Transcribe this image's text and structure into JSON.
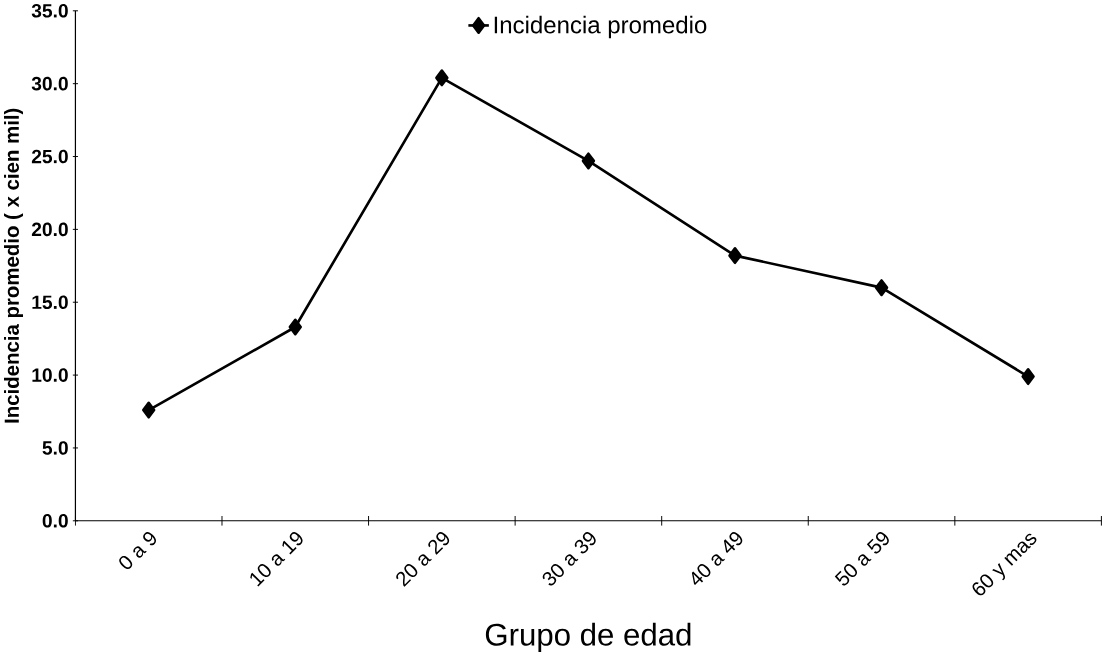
{
  "chart_data": {
    "type": "line",
    "xlabel": "Grupo de edad",
    "ylabel": "Incidencia promedio ( x cien mil)",
    "categories": [
      "0 a 9",
      "10 a 19",
      "20 a 29",
      "30 a 39",
      "40 a 49",
      "50 a 59",
      "60 y mas"
    ],
    "series": [
      {
        "name": "Incidencia promedio",
        "color": "#000000",
        "values": [
          7.6,
          13.3,
          30.4,
          24.7,
          18.2,
          16.0,
          9.9
        ]
      }
    ],
    "ylim": [
      0,
      35
    ],
    "yticks": [
      {
        "value": 0,
        "label": "0.0"
      },
      {
        "value": 5,
        "label": "5.0"
      },
      {
        "value": 10,
        "label": "10.0"
      },
      {
        "value": 15,
        "label": "15.0"
      },
      {
        "value": 20,
        "label": "20.0"
      },
      {
        "value": 25,
        "label": "25.0"
      },
      {
        "value": 30,
        "label": "30.0"
      },
      {
        "value": 35,
        "label": "35.0"
      }
    ],
    "grid": false,
    "legend": "top",
    "marker": "diamond",
    "line_style": "solid"
  }
}
